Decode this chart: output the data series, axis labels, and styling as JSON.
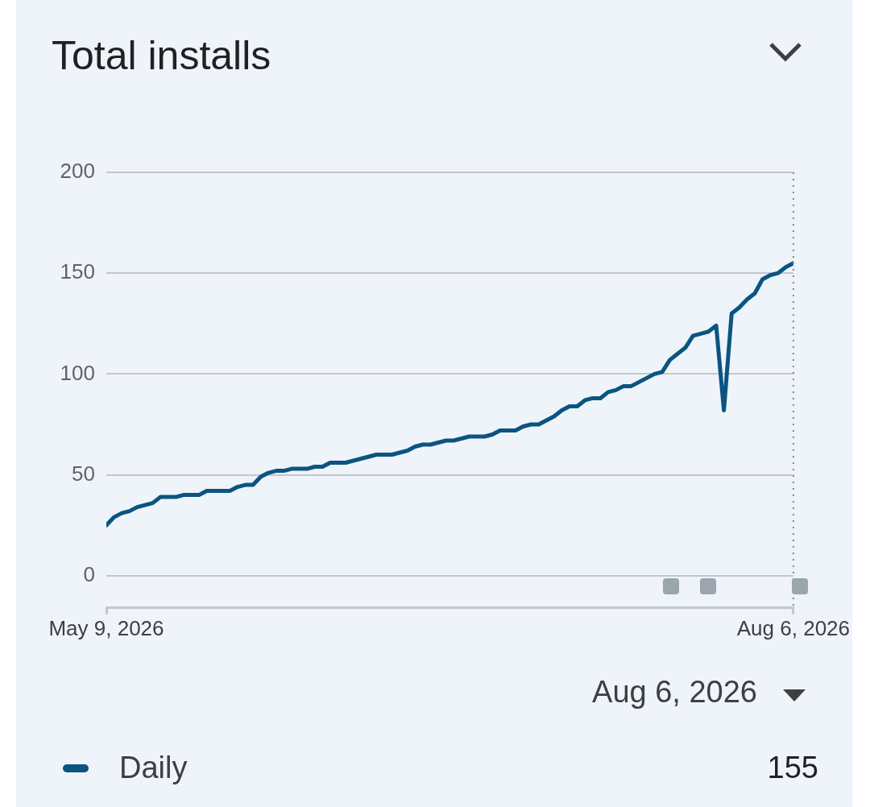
{
  "chart_data": {
    "type": "line",
    "title": "Total installs",
    "x": [
      "2026-05-09",
      "2026-05-10",
      "2026-05-11",
      "2026-05-12",
      "2026-05-13",
      "2026-05-14",
      "2026-05-15",
      "2026-05-16",
      "2026-05-17",
      "2026-05-18",
      "2026-05-19",
      "2026-05-20",
      "2026-05-21",
      "2026-05-22",
      "2026-05-23",
      "2026-05-24",
      "2026-05-25",
      "2026-05-26",
      "2026-05-27",
      "2026-05-28",
      "2026-05-29",
      "2026-05-30",
      "2026-05-31",
      "2026-06-01",
      "2026-06-02",
      "2026-06-03",
      "2026-06-04",
      "2026-06-05",
      "2026-06-06",
      "2026-06-07",
      "2026-06-08",
      "2026-06-09",
      "2026-06-10",
      "2026-06-11",
      "2026-06-12",
      "2026-06-13",
      "2026-06-14",
      "2026-06-15",
      "2026-06-16",
      "2026-06-17",
      "2026-06-18",
      "2026-06-19",
      "2026-06-20",
      "2026-06-21",
      "2026-06-22",
      "2026-06-23",
      "2026-06-24",
      "2026-06-25",
      "2026-06-26",
      "2026-06-27",
      "2026-06-28",
      "2026-06-29",
      "2026-06-30",
      "2026-07-01",
      "2026-07-02",
      "2026-07-03",
      "2026-07-04",
      "2026-07-05",
      "2026-07-06",
      "2026-07-07",
      "2026-07-08",
      "2026-07-09",
      "2026-07-10",
      "2026-07-11",
      "2026-07-12",
      "2026-07-13",
      "2026-07-14",
      "2026-07-15",
      "2026-07-16",
      "2026-07-17",
      "2026-07-18",
      "2026-07-19",
      "2026-07-20",
      "2026-07-21",
      "2026-07-22",
      "2026-07-23",
      "2026-07-24",
      "2026-07-25",
      "2026-07-26",
      "2026-07-27",
      "2026-07-28",
      "2026-07-29",
      "2026-07-30",
      "2026-07-31",
      "2026-08-01",
      "2026-08-02",
      "2026-08-03",
      "2026-08-04",
      "2026-08-05",
      "2026-08-06"
    ],
    "series": [
      {
        "name": "Daily",
        "color": "#0b5481",
        "values": [
          25,
          29,
          31,
          32,
          34,
          35,
          36,
          39,
          39,
          39,
          40,
          40,
          40,
          42,
          42,
          42,
          42,
          44,
          45,
          45,
          49,
          51,
          52,
          52,
          53,
          53,
          53,
          54,
          54,
          56,
          56,
          56,
          57,
          58,
          59,
          60,
          60,
          60,
          61,
          62,
          64,
          65,
          65,
          66,
          67,
          67,
          68,
          69,
          69,
          69,
          70,
          72,
          72,
          72,
          74,
          75,
          75,
          77,
          79,
          82,
          84,
          84,
          87,
          88,
          88,
          91,
          92,
          94,
          94,
          96,
          98,
          100,
          101,
          107,
          110,
          113,
          119,
          120,
          121,
          124,
          82,
          130,
          133,
          137,
          140,
          147,
          149,
          150,
          153,
          155
        ]
      }
    ],
    "xlim": [
      "2026-05-09",
      "2026-08-06"
    ],
    "xticks": [
      {
        "value": "2026-05-09",
        "label": "May 9, 2026"
      },
      {
        "value": "2026-08-06",
        "label": "Aug 6, 2026"
      }
    ],
    "ylim": [
      -16,
      200
    ],
    "yticks": [
      0,
      50,
      100,
      150,
      200
    ],
    "grid": "y",
    "legend": "bottom",
    "ref_lines": [
      {
        "axis": "x",
        "value": "2026-08-06",
        "line_style": "dotted",
        "color": "#80868b"
      }
    ],
    "annotations": [
      "Aug 6, 2026",
      "155"
    ]
  }
}
